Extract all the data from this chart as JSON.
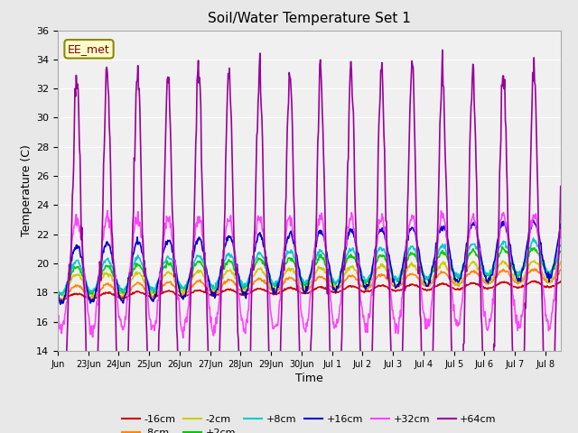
{
  "title": "Soil/Water Temperature Set 1",
  "ylabel": "Temperature (C)",
  "xlabel": "Time",
  "ylim": [
    14,
    36
  ],
  "yticks": [
    14,
    16,
    18,
    20,
    22,
    24,
    26,
    28,
    30,
    32,
    34,
    36
  ],
  "background_color": "#e8e8e8",
  "plot_bg_color": "#f0f0f0",
  "series_colors": {
    "-16cm": "#cc0000",
    "-8cm": "#ff8800",
    "-2cm": "#cccc00",
    "+2cm": "#00cc00",
    "+8cm": "#00cccc",
    "+16cm": "#0000cc",
    "+32cm": "#ff44ff",
    "+64cm": "#990099"
  },
  "annotation": {
    "text": "EE_met",
    "fontsize": 9,
    "color": "#880000",
    "bg": "#ffffcc",
    "border": "#888800"
  },
  "total_days": 16.5,
  "pts_per_day": 48
}
